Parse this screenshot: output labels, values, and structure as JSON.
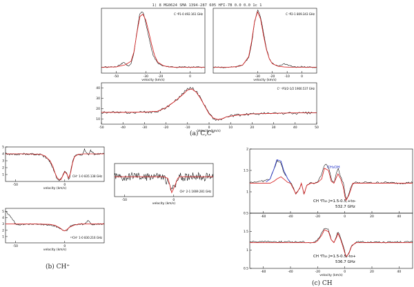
{
  "header": "1)  8 MG0624  SMA  1394-287  605 HFI-7B          0.0     0.0    1c        1",
  "captions": {
    "a": "(a) C,C⁺",
    "b": "(b) CH⁺",
    "c": "(c) CH"
  },
  "colors": {
    "observed": "#000000",
    "model": "#d62020",
    "ch3oh": "#2233cc"
  },
  "chart_data": [
    {
      "id": "a1",
      "type": "line",
      "label": "C  ³P1-0   492.161 GHz",
      "xlabel": "velocity (km/s)",
      "xlim": [
        -60,
        10
      ],
      "ylim": [
        -0.5,
        5.0
      ],
      "xticks": [
        -50,
        -30,
        -20,
        0
      ],
      "yticks": [],
      "series": [
        {
          "name": "obs",
          "x": [
            -60,
            -50,
            -45,
            -42,
            -40,
            -38,
            -36,
            -34,
            -32,
            -31,
            -29,
            -27,
            -25,
            -22,
            -18,
            -14,
            -10,
            -5,
            0,
            5,
            10
          ],
          "y": [
            0,
            0.05,
            0.4,
            0.1,
            0.3,
            1.2,
            3.0,
            4.6,
            4.7,
            4.3,
            3.2,
            2.0,
            1.0,
            0.35,
            0.1,
            0.05,
            0.0,
            0.02,
            0.0,
            0.02,
            0.0
          ]
        },
        {
          "name": "model",
          "x": [
            -60,
            -50,
            -44,
            -40,
            -38,
            -36,
            -34,
            -32,
            -30,
            -28,
            -26,
            -24,
            -22,
            -18,
            -14,
            -10,
            -5,
            0,
            5,
            10
          ],
          "y": [
            0,
            0.03,
            0.2,
            0.5,
            1.3,
            2.9,
            4.3,
            4.5,
            4.0,
            3.0,
            1.9,
            1.0,
            0.45,
            0.12,
            0.03,
            0.0,
            0.0,
            0.0,
            0.0,
            0.0
          ]
        }
      ]
    },
    {
      "id": "a2",
      "type": "line",
      "label": "C  ³P2-1   809.343 GHz",
      "xlabel": "velocity (km/s)",
      "xlim": [
        -60,
        10
      ],
      "ylim": [
        -0.5,
        5.0
      ],
      "xticks": [
        -30,
        -20,
        -10,
        0
      ],
      "yticks": [],
      "series": [
        {
          "name": "obs",
          "x": [
            -60,
            -50,
            -44,
            -40,
            -36,
            -34,
            -32,
            -30,
            -28,
            -26,
            -24,
            -22,
            -20,
            -16,
            -12,
            -8,
            -4,
            0,
            5,
            10
          ],
          "y": [
            0,
            0.0,
            0.05,
            0.2,
            0.8,
            2.0,
            3.8,
            4.9,
            4.3,
            2.9,
            1.6,
            0.7,
            0.3,
            0.1,
            0.3,
            0.1,
            0.0,
            0.05,
            0.0,
            0.0
          ]
        },
        {
          "name": "model",
          "x": [
            -60,
            -50,
            -44,
            -40,
            -36,
            -34,
            -32,
            -30,
            -28,
            -26,
            -24,
            -22,
            -20,
            -16,
            -12,
            -8,
            -4,
            0,
            5,
            10
          ],
          "y": [
            0,
            0.0,
            0.05,
            0.2,
            0.9,
            2.2,
            3.9,
            4.7,
            4.1,
            2.7,
            1.5,
            0.7,
            0.3,
            0.08,
            0.02,
            0.0,
            0.0,
            0.0,
            0.0,
            0.0
          ]
        }
      ]
    },
    {
      "id": "a3",
      "type": "line",
      "label": "C⁺   ²P3/2-1/2   1900.537 GHz",
      "xlabel": "Velocity (km/s)",
      "xlim": [
        -50,
        50
      ],
      "ylim": [
        5,
        45
      ],
      "xticks": [
        -50,
        -40,
        -30,
        -20,
        -10,
        0,
        10,
        20,
        30,
        40,
        50
      ],
      "yticks": [
        10,
        20,
        30,
        40
      ],
      "series": [
        {
          "name": "obs",
          "x": [
            -50,
            -40,
            -30,
            -24,
            -20,
            -16,
            -12,
            -10,
            -8,
            -6,
            -4,
            -2,
            0,
            2,
            4,
            6,
            8,
            12,
            16,
            20,
            30,
            40,
            50
          ],
          "y": [
            16.5,
            16,
            16.5,
            17,
            21,
            27,
            35,
            39,
            40,
            37,
            31,
            23,
            15.5,
            10.5,
            9,
            10,
            12,
            13.5,
            14,
            15,
            15.5,
            15.5,
            16
          ]
        },
        {
          "name": "model",
          "x": [
            -50,
            -40,
            -30,
            -24,
            -20,
            -16,
            -12,
            -10,
            -8,
            -6,
            -4,
            -2,
            0,
            2,
            4,
            6,
            8,
            12,
            16,
            20,
            30,
            40,
            50
          ],
          "y": [
            16.5,
            16.5,
            16.7,
            17.5,
            21,
            27,
            34,
            38,
            39,
            36,
            30,
            22.5,
            15,
            11,
            9.5,
            10.2,
            12,
            13.5,
            14.2,
            15,
            15.5,
            16,
            16
          ]
        }
      ]
    },
    {
      "id": "b1",
      "type": "line",
      "label": "CH⁺   1-0   835.138 GHz",
      "xlabel": "velocity (km/s)",
      "xlim": [
        -60,
        40
      ],
      "ylim": [
        0,
        5
      ],
      "xticks": [
        -50,
        0
      ],
      "yticks": [
        1,
        2,
        3,
        4,
        5
      ],
      "series": [
        {
          "name": "obs",
          "x": [
            -60,
            -50,
            -40,
            -30,
            -25,
            -20,
            -15,
            -12,
            -10,
            -8,
            -6,
            -5,
            -4,
            -3,
            -2,
            0,
            2,
            3,
            4,
            5,
            6,
            8,
            10,
            14,
            18,
            20,
            22,
            24,
            26,
            30,
            40
          ],
          "y": [
            4.0,
            3.95,
            4.0,
            3.95,
            3.9,
            3.6,
            2.9,
            2.0,
            1.2,
            0.5,
            0.25,
            0.2,
            0.3,
            0.5,
            1.0,
            1.5,
            1.2,
            0.6,
            0.3,
            0.4,
            1.5,
            2.9,
            3.7,
            3.95,
            3.9,
            4.6,
            4.1,
            3.8,
            4.5,
            3.95,
            4.0
          ]
        },
        {
          "name": "model",
          "x": [
            -60,
            -40,
            -25,
            -20,
            -15,
            -12,
            -10,
            -8,
            -6,
            -4,
            -2,
            0,
            2,
            4,
            6,
            8,
            10,
            14,
            20,
            30,
            40
          ],
          "y": [
            4.0,
            4.0,
            3.95,
            3.7,
            3.0,
            2.2,
            1.3,
            0.6,
            0.3,
            0.25,
            0.8,
            1.4,
            1.1,
            0.5,
            1.3,
            2.7,
            3.6,
            3.95,
            4.0,
            4.0,
            4.0
          ]
        }
      ]
    },
    {
      "id": "b2",
      "type": "line",
      "label": "CH⁺   2-1   1669.281 GHz",
      "xlabel": "velocity (km/s)",
      "xlim": [
        -60,
        40
      ],
      "ylim": [
        -0.6,
        0.4
      ],
      "xticks": [
        -50,
        0
      ],
      "yticks": [],
      "series": [
        {
          "name": "obs",
          "x": [
            -60,
            -50,
            -40,
            -30,
            -20,
            -10,
            -5,
            -2,
            0,
            2,
            5,
            10,
            20,
            30,
            40
          ],
          "y": [
            0.02,
            -0.05,
            0.03,
            -0.02,
            0.04,
            -0.03,
            -0.2,
            -0.45,
            -0.15,
            -0.3,
            0.02,
            -0.03,
            0.04,
            -0.02,
            0.02
          ]
        },
        {
          "name": "model",
          "x": [
            -60,
            -20,
            -10,
            -6,
            -4,
            -2,
            0,
            2,
            4,
            6,
            10,
            40
          ],
          "y": [
            0,
            0,
            0,
            -0.05,
            -0.25,
            -0.48,
            -0.35,
            -0.2,
            -0.05,
            0,
            0,
            0
          ]
        }
      ]
    },
    {
      "id": "b3",
      "type": "line",
      "label": "¹³CH⁺   1-0   830.216 GHz",
      "xlabel": "velocity (km/s)",
      "xlim": [
        -60,
        40
      ],
      "ylim": [
        0,
        5.5
      ],
      "xticks": [
        -50,
        0
      ],
      "yticks": [
        1,
        2,
        3,
        4,
        5
      ],
      "series": [
        {
          "name": "obs",
          "x": [
            -60,
            -55,
            -52,
            -50,
            -45,
            -40,
            -30,
            -20,
            -10,
            -5,
            0,
            3,
            6,
            10,
            15,
            20,
            24,
            26,
            28,
            30,
            40
          ],
          "y": [
            5.0,
            4.2,
            3.6,
            3.0,
            2.9,
            3.0,
            2.95,
            2.9,
            2.7,
            2.3,
            1.9,
            2.1,
            2.7,
            2.9,
            3.0,
            2.95,
            3.6,
            3.2,
            2.9,
            2.95,
            3.0
          ]
        },
        {
          "name": "model",
          "x": [
            -60,
            -30,
            -15,
            -10,
            -5,
            -2,
            0,
            2,
            5,
            10,
            15,
            40
          ],
          "y": [
            3.0,
            3.0,
            2.95,
            2.8,
            2.4,
            2.0,
            1.9,
            2.1,
            2.5,
            2.85,
            3.0,
            3.0
          ]
        }
      ]
    },
    {
      "id": "c1",
      "type": "line",
      "label": "CH   ²Π₁₅  J=1.5-0.5,+to-",
      "label2": "532.7 GHz",
      "annotation": "CH₃OH",
      "xlabel": "",
      "xlim": [
        -70,
        50
      ],
      "ylim": [
        0.5,
        2
      ],
      "xticks": [
        -60,
        -40,
        -20,
        0,
        20,
        40
      ],
      "yticks": [
        0.5,
        1,
        1.5,
        2
      ],
      "series": [
        {
          "name": "obs",
          "x": [
            -70,
            -60,
            -55,
            -52,
            -50,
            -47,
            -45,
            -42,
            -40,
            -38,
            -36,
            -33,
            -32,
            -30,
            -28,
            -25,
            -22,
            -20,
            -17,
            -15,
            -12,
            -10,
            -8,
            -6,
            -5,
            -3,
            -1,
            0,
            1,
            3,
            5,
            6,
            8,
            10,
            15,
            20,
            30,
            40,
            50
          ],
          "y": [
            1.22,
            1.25,
            1.3,
            1.55,
            1.72,
            1.68,
            1.45,
            1.3,
            1.22,
            1.1,
            0.95,
            1.1,
            1.22,
            0.93,
            1.15,
            1.22,
            1.2,
            1.25,
            1.4,
            1.65,
            1.6,
            1.3,
            1.2,
            1.45,
            1.58,
            1.35,
            1.2,
            1.0,
            0.82,
            0.95,
            1.15,
            1.2,
            1.22,
            1.2,
            1.22,
            1.21,
            1.22,
            1.2,
            1.22
          ]
        },
        {
          "name": "model",
          "x": [
            -70,
            -60,
            -55,
            -52,
            -50,
            -47,
            -45,
            -42,
            -40,
            -38,
            -36,
            -33,
            -32,
            -30,
            -28,
            -25,
            -22,
            -20,
            -17,
            -15,
            -12,
            -10,
            -8,
            -6,
            -5,
            -3,
            -1,
            0,
            1,
            3,
            5,
            6,
            8,
            10,
            15,
            20,
            30,
            40,
            50
          ],
          "y": [
            1.2,
            1.2,
            1.2,
            1.25,
            1.3,
            1.35,
            1.3,
            1.22,
            1.2,
            1.08,
            0.95,
            1.1,
            1.2,
            0.95,
            1.15,
            1.2,
            1.2,
            1.22,
            1.3,
            1.55,
            1.5,
            1.25,
            1.2,
            1.35,
            1.42,
            1.3,
            1.1,
            0.9,
            0.8,
            0.92,
            1.1,
            1.2,
            1.2,
            1.2,
            1.2,
            1.2,
            1.2,
            1.2,
            1.2
          ]
        },
        {
          "name": "ch3oh",
          "x": [
            -58,
            -55,
            -52,
            -50,
            -47,
            -45,
            -42,
            -40
          ],
          "y": [
            1.23,
            1.3,
            1.55,
            1.75,
            1.72,
            1.5,
            1.3,
            1.22
          ]
        }
      ]
    },
    {
      "id": "c2",
      "type": "line",
      "label": "CH   ²Π₁₅  J=1.5-0.5,-to+",
      "label2": "536.7 GHz",
      "xlabel": "velocity (km/s)",
      "xlim": [
        -70,
        50
      ],
      "ylim": [
        0.5,
        2
      ],
      "xticks": [
        -60,
        -40,
        -20,
        0,
        20,
        40
      ],
      "yticks": [
        0.5,
        1,
        1.5
      ],
      "series": [
        {
          "name": "obs",
          "x": [
            -70,
            -60,
            -40,
            -30,
            -25,
            -22,
            -20,
            -17,
            -15,
            -12,
            -10,
            -8,
            -6,
            -5,
            -3,
            -1,
            0,
            1,
            3,
            5,
            8,
            10,
            20,
            30,
            40,
            50
          ],
          "y": [
            1.22,
            1.23,
            1.22,
            1.22,
            1.2,
            1.22,
            1.28,
            1.45,
            1.6,
            1.55,
            1.3,
            1.2,
            1.4,
            1.52,
            1.3,
            1.1,
            0.95,
            0.8,
            0.9,
            1.12,
            1.2,
            1.22,
            1.22,
            1.21,
            1.22,
            1.22
          ]
        },
        {
          "name": "model",
          "x": [
            -70,
            -60,
            -40,
            -30,
            -25,
            -22,
            -20,
            -17,
            -15,
            -12,
            -10,
            -8,
            -6,
            -5,
            -3,
            -1,
            0,
            1,
            3,
            5,
            8,
            10,
            20,
            30,
            40,
            50
          ],
          "y": [
            1.2,
            1.2,
            1.2,
            1.2,
            1.2,
            1.2,
            1.25,
            1.4,
            1.55,
            1.5,
            1.28,
            1.2,
            1.35,
            1.45,
            1.28,
            1.05,
            0.92,
            0.82,
            0.9,
            1.1,
            1.2,
            1.2,
            1.2,
            1.2,
            1.2,
            1.2
          ]
        }
      ]
    }
  ]
}
